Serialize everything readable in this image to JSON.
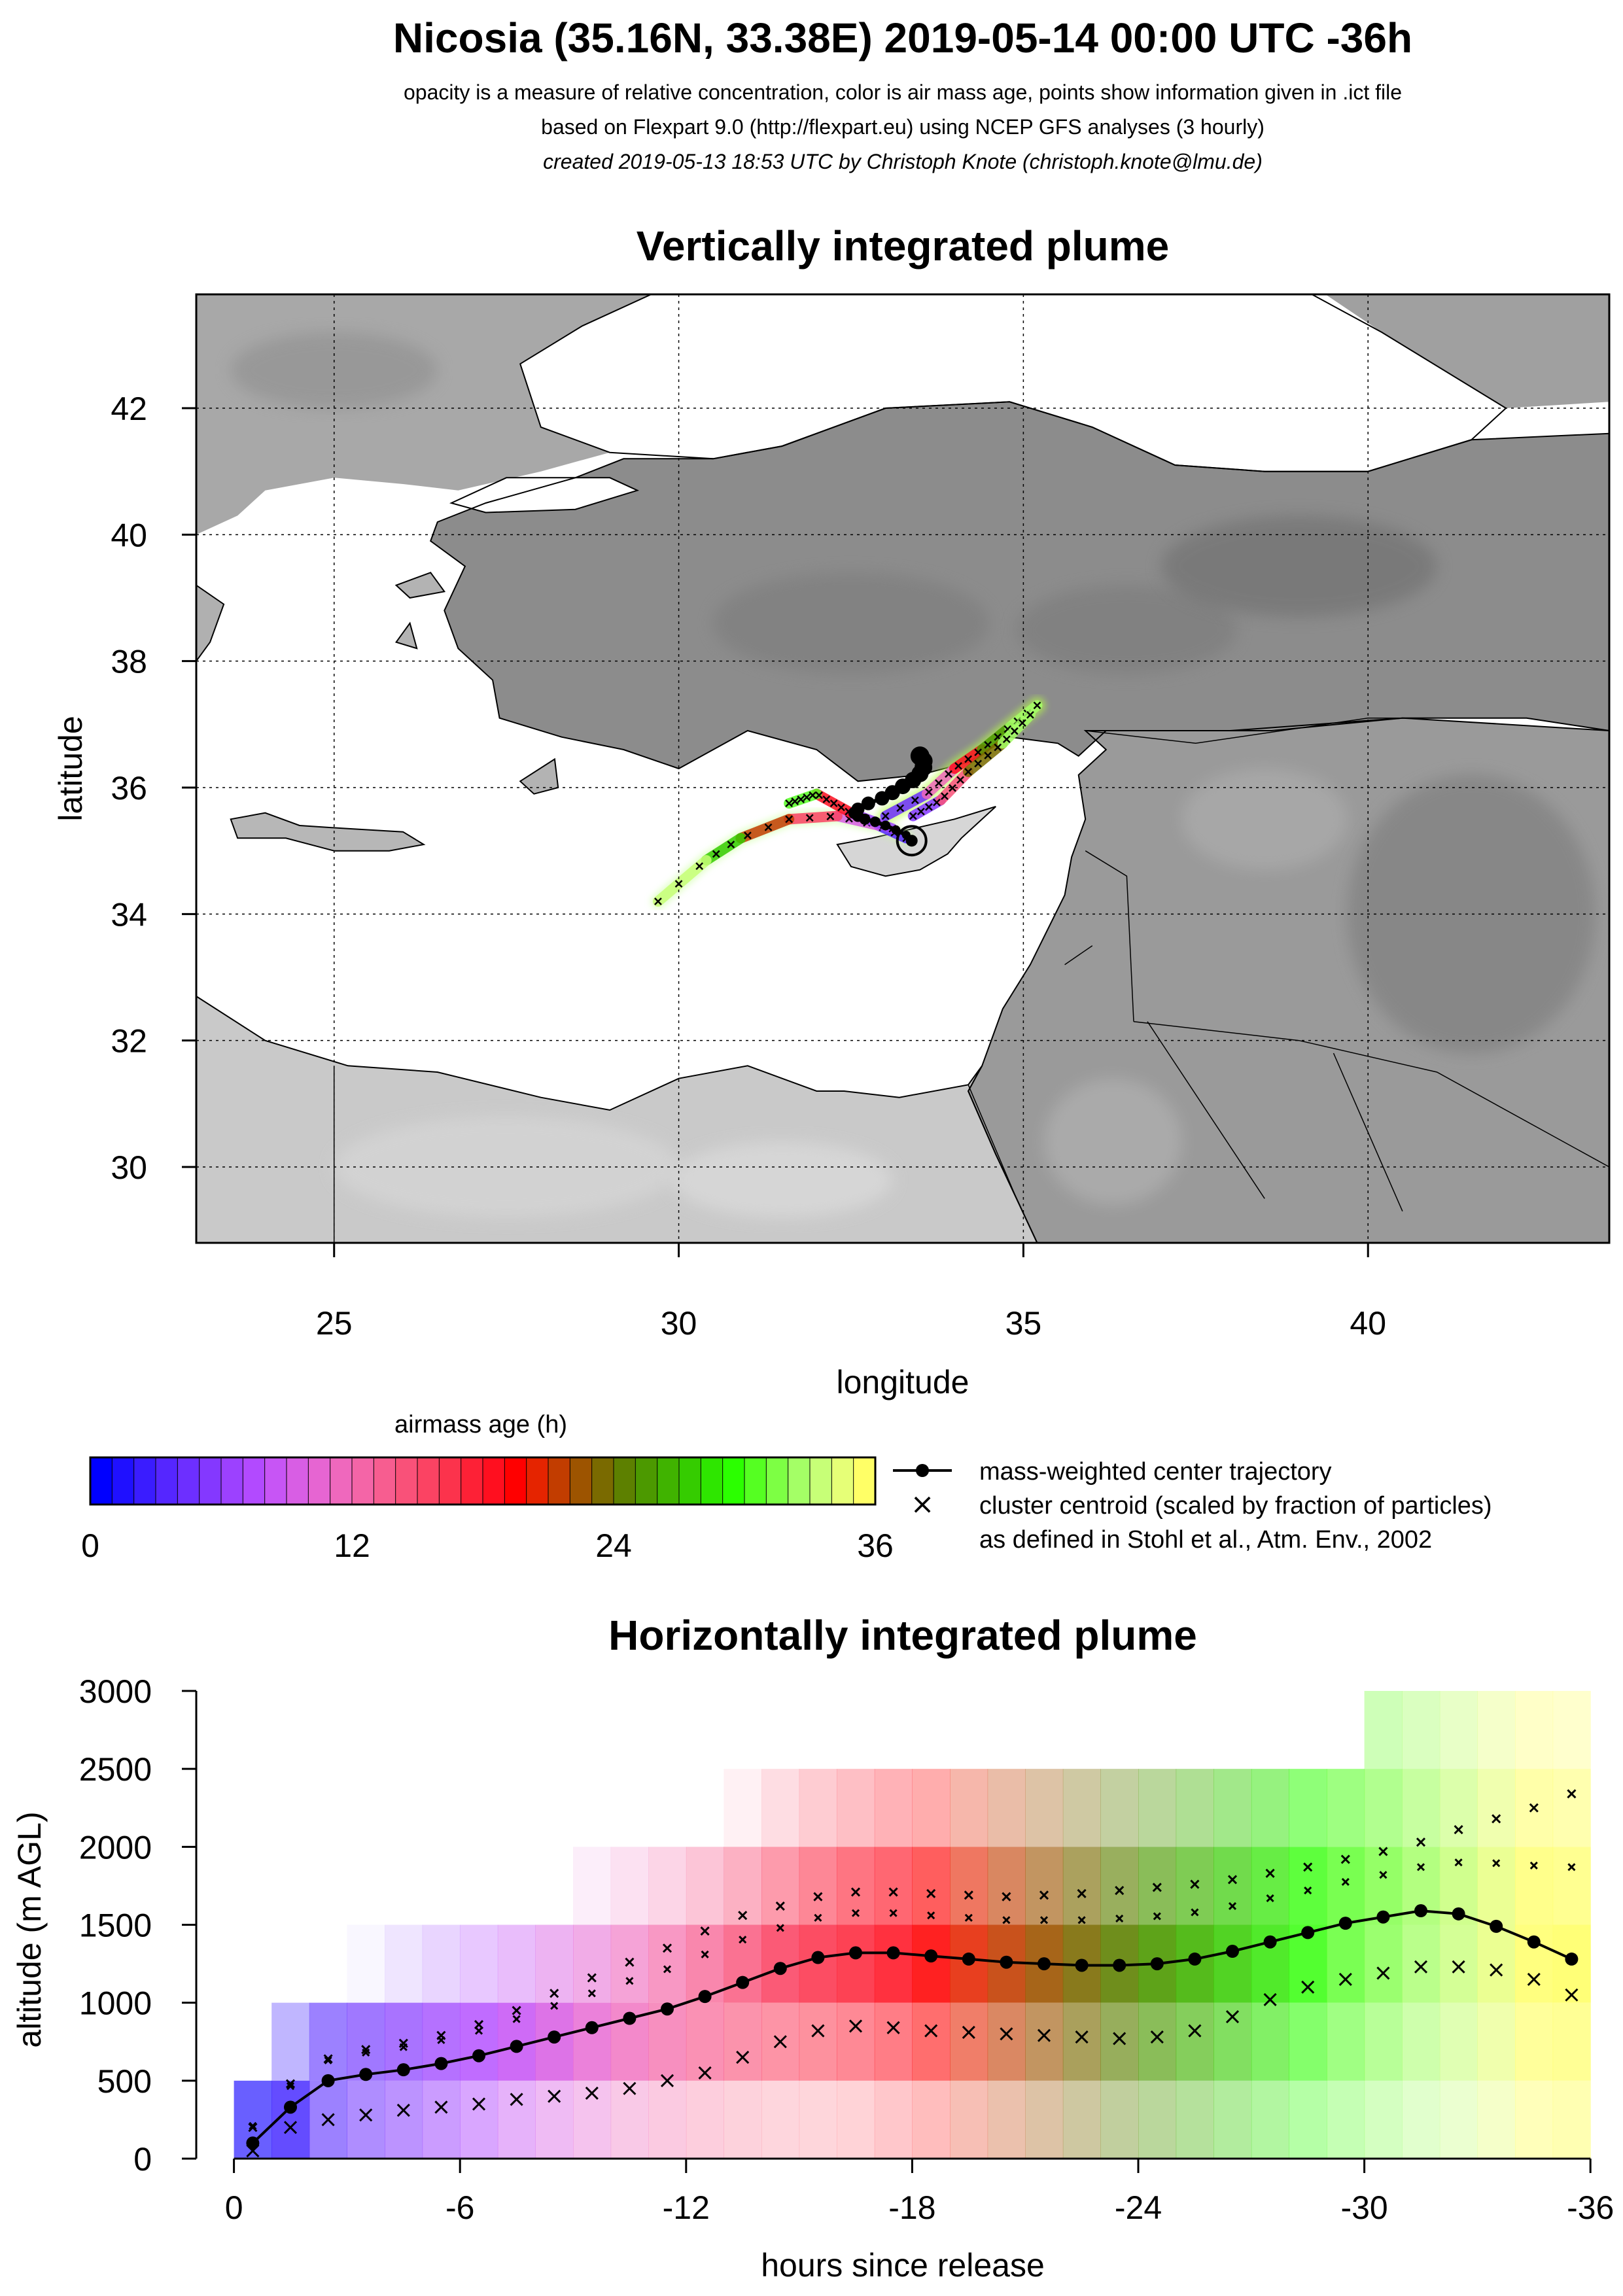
{
  "header": {
    "title": "Nicosia (35.16N, 33.38E) 2019-05-14 00:00 UTC -36h",
    "line1": "opacity is a measure of relative concentration, color is air mass age, points show information given in .ict file",
    "line2": "based on Flexpart 9.0 (http://flexpart.eu) using NCEP GFS analyses (3 hourly)",
    "line3": "created 2019-05-13 18:53 UTC by Christoph Knote (christoph.knote@lmu.de)"
  },
  "colors": {
    "age_colors": [
      "#0000ff",
      "#1f10ff",
      "#3a1cff",
      "#5526ff",
      "#6d2fff",
      "#8438ff",
      "#9c41ff",
      "#b24aff",
      "#c755f5",
      "#d85ee4",
      "#e665d2",
      "#ef68bd",
      "#f465a7",
      "#f75d90",
      "#f95179",
      "#fb4363",
      "#fc334c",
      "#fd2136",
      "#ff0f1f",
      "#ff0000",
      "#e52400",
      "#c23d00",
      "#9d5400",
      "#7a6a00",
      "#5d8000",
      "#4c9900",
      "#40b300",
      "#35cc00",
      "#2ee600",
      "#2bff00",
      "#55ff22",
      "#7dff44",
      "#a4ff66",
      "#c7ff77",
      "#e6ff77",
      "#ffff66"
    ],
    "land": "#9a9a9a",
    "sea": "#ffffff",
    "grid": "#000000"
  },
  "chart_data": [
    {
      "type": "heatmap",
      "title": "Vertically integrated plume",
      "xlabel": "longitude",
      "ylabel": "latitude",
      "xlim": [
        23,
        43.5
      ],
      "ylim": [
        28.8,
        43.8
      ],
      "xticks": [
        25,
        30,
        35,
        40
      ],
      "yticks": [
        30,
        32,
        34,
        36,
        38,
        40,
        42
      ],
      "grid": true,
      "release_point": {
        "lon": 33.38,
        "lat": 35.16
      },
      "center_trajectory": {
        "name": "mass-weighted center trajectory",
        "lon": [
          33.38,
          33.3,
          33.15,
          33.0,
          32.85,
          32.7,
          32.6,
          32.55,
          32.6,
          32.75,
          32.95,
          33.1,
          33.25,
          33.4,
          33.5,
          33.55,
          33.55,
          33.5
        ],
        "lat": [
          35.16,
          35.25,
          35.33,
          35.4,
          35.46,
          35.5,
          35.55,
          35.6,
          35.66,
          35.75,
          35.83,
          35.92,
          36.02,
          36.12,
          36.22,
          36.32,
          36.42,
          36.5
        ]
      },
      "cluster_paths": [
        {
          "age": [
            0,
            36
          ],
          "lon": [
            33.3,
            32.9,
            32.3,
            31.6,
            30.9,
            30.4,
            29.7
          ],
          "lat": [
            35.2,
            35.4,
            35.55,
            35.5,
            35.2,
            34.85,
            34.2
          ]
        },
        {
          "age": [
            0,
            36
          ],
          "lon": [
            33.1,
            32.5,
            32.0,
            31.6
          ],
          "lat": [
            35.35,
            35.6,
            35.9,
            35.75
          ]
        },
        {
          "age": [
            0,
            36
          ],
          "lon": [
            33.0,
            33.6,
            34.0,
            34.4,
            34.8,
            35.2
          ],
          "lat": [
            35.55,
            35.9,
            36.3,
            36.6,
            36.95,
            37.3
          ]
        },
        {
          "age": [
            0,
            36
          ],
          "lon": [
            33.4,
            33.8,
            34.2,
            34.7,
            35.1
          ],
          "lat": [
            35.55,
            35.8,
            36.25,
            36.7,
            37.15
          ]
        }
      ]
    },
    {
      "type": "heatmap",
      "title": "Horizontally integrated plume",
      "xlabel": "hours since release",
      "ylabel": "altitude (m AGL)",
      "xlim": [
        1,
        -36.5
      ],
      "ylim": [
        0,
        3000
      ],
      "xticks": [
        0,
        -6,
        -12,
        -18,
        -24,
        -30,
        -36
      ],
      "yticks": [
        0,
        500,
        1000,
        1500,
        2000,
        2500,
        3000
      ],
      "grid": false,
      "center_trajectory": {
        "name": "mass-weighted center trajectory",
        "x": [
          -0.5,
          -1.5,
          -2.5,
          -3.5,
          -4.5,
          -5.5,
          -6.5,
          -7.5,
          -8.5,
          -9.5,
          -10.5,
          -11.5,
          -12.5,
          -13.5,
          -14.5,
          -15.5,
          -16.5,
          -17.5,
          -18.5,
          -19.5,
          -20.5,
          -21.5,
          -22.5,
          -23.5,
          -24.5,
          -25.5,
          -26.5,
          -27.5,
          -28.5,
          -29.5,
          -30.5,
          -31.5,
          -32.5,
          -33.5,
          -34.5,
          -35.5
        ],
        "y": [
          100,
          330,
          500,
          540,
          570,
          610,
          660,
          720,
          780,
          840,
          900,
          960,
          1040,
          1130,
          1220,
          1290,
          1320,
          1320,
          1300,
          1280,
          1260,
          1250,
          1240,
          1240,
          1250,
          1280,
          1330,
          1390,
          1450,
          1510,
          1550,
          1590,
          1570,
          1490,
          1390,
          1280
        ]
      },
      "cluster_centroids_upper": [
        200,
        480,
        640,
        700,
        740,
        790,
        860,
        950,
        1060,
        1160,
        1260,
        1350,
        1460,
        1560,
        1620,
        1680,
        1710,
        1710,
        1700,
        1690,
        1680,
        1690,
        1700,
        1720,
        1740,
        1760,
        1790,
        1830,
        1870,
        1920,
        1970,
        2030,
        2110,
        2180,
        2250,
        2340
      ],
      "cluster_centroids_lower": [
        50,
        200,
        250,
        280,
        310,
        330,
        350,
        380,
        400,
        420,
        450,
        500,
        550,
        650,
        750,
        820,
        850,
        840,
        820,
        810,
        800,
        790,
        780,
        770,
        780,
        820,
        910,
        1020,
        1100,
        1150,
        1190,
        1230,
        1230,
        1210,
        1150,
        1050
      ]
    }
  ],
  "legend": {
    "colorbar_title": "airmass age (h)",
    "colorbar_ticks": [
      "0",
      "12",
      "24",
      "36"
    ],
    "traj_label": "mass-weighted center trajectory",
    "cluster_label_1": "cluster centroid (scaled by fraction of particles)",
    "cluster_label_2": "as defined in Stohl et al., Atm. Env., 2002"
  }
}
